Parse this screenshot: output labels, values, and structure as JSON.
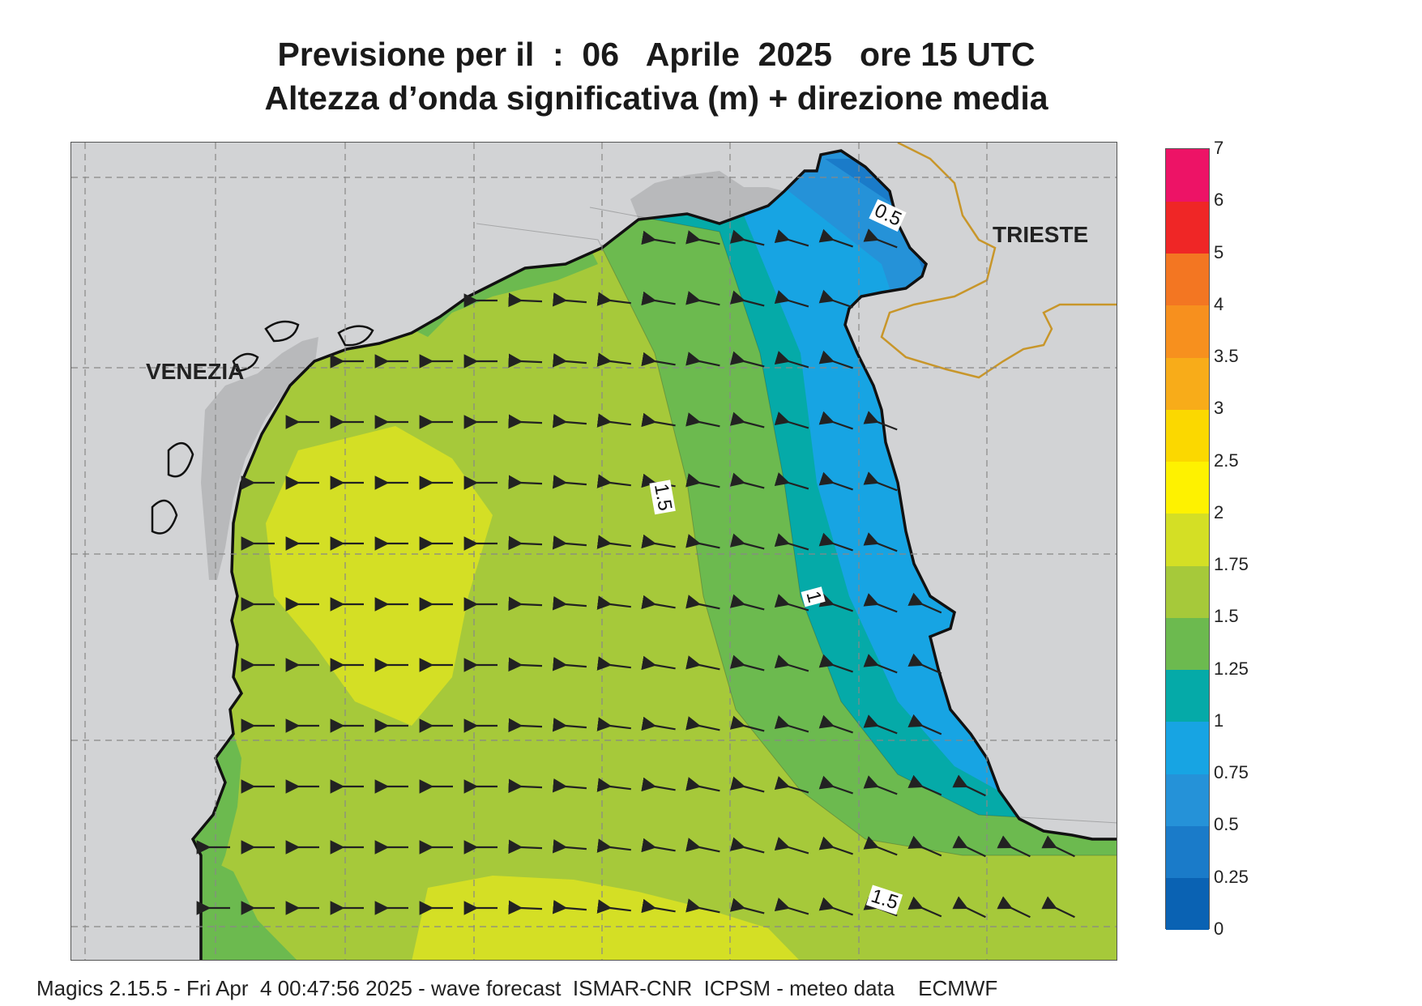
{
  "title_line1": "Previsione per il  :  06   Aprile  2025   ore 15 UTC",
  "title_line2": "Altezza d’onda significativa (m) + direzione media",
  "cities": [
    {
      "name": "VENEZIA"
    },
    {
      "name": "TRIESTE"
    }
  ],
  "contour_labels": [
    "0.5",
    "1.5",
    "1",
    "1.5"
  ],
  "legend": {
    "unit": "m",
    "levels": [
      "0",
      "0.25",
      "0.5",
      "0.75",
      "1",
      "1.25",
      "1.5",
      "1.75",
      "2",
      "2.5",
      "3",
      "3.5",
      "4",
      "5",
      "6",
      "7"
    ],
    "colors": [
      "#0a62b3",
      "#1a7bc9",
      "#2592d8",
      "#17a4e3",
      "#05aaa8",
      "#6cba4f",
      "#a6c93a",
      "#d4df25",
      "#fef200",
      "#fbd800",
      "#f8ac19",
      "#f7901e",
      "#f37622",
      "#ef2626",
      "#ed1366"
    ]
  },
  "colors": {
    "land": "#d2d3d5",
    "land_dark": "#b8b9bb",
    "coast": "#111111",
    "border": "#c8962a",
    "arrows": "#222222"
  },
  "footer": "Magics 2.15.5 - Fri Apr  4 00:47:56 2025 - wave forecast  ISMAR-CNR  ICPSM - meteo data    ECMWF"
}
